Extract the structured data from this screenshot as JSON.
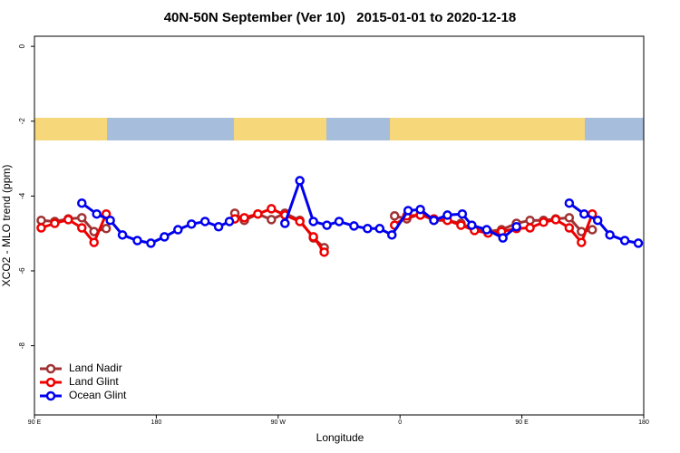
{
  "chart_data": {
    "type": "line",
    "title": "40N-50N September (Ver 10)   2015-01-01 to 2020-12-18",
    "xlabel": "Longitude",
    "ylabel": "XCO2 - MLO trend (ppm)",
    "xlim": [
      90,
      540
    ],
    "xticks": [
      {
        "value": 90,
        "label": "90 E"
      },
      {
        "value": 180,
        "label": "180"
      },
      {
        "value": 270,
        "label": "90 W"
      },
      {
        "value": 360,
        "label": "0"
      },
      {
        "value": 450,
        "label": "90 E"
      },
      {
        "value": 540,
        "label": "180"
      }
    ],
    "ylim": [
      -9.85,
      0.27
    ],
    "yticks": [
      0,
      -2,
      -4,
      -6,
      -8
    ],
    "legend": "bottom-left",
    "series": [
      {
        "name": "Land Nadir",
        "color": "#a03232",
        "x": [
          95,
          105,
          115,
          125,
          134,
          143,
          null,
          238,
          245,
          255,
          265,
          275,
          286,
          296,
          304,
          null,
          356,
          365,
          375,
          385,
          395,
          405,
          415,
          425,
          435,
          446,
          456,
          466,
          475,
          485,
          494,
          502
        ],
        "values": [
          -4.65,
          -4.68,
          -4.61,
          -4.58,
          -4.95,
          -4.87,
          null,
          -4.46,
          -4.65,
          -4.48,
          -4.63,
          -4.46,
          -4.65,
          -5.12,
          -5.38,
          null,
          -4.53,
          -4.61,
          -4.48,
          -4.65,
          -4.65,
          -4.73,
          -4.9,
          -4.95,
          -4.9,
          -4.73,
          -4.65,
          -4.65,
          -4.61,
          -4.58,
          -4.95,
          -4.9
        ]
      },
      {
        "name": "Land Glint",
        "color": "#ee0000",
        "x": [
          95,
          105,
          115,
          125,
          134,
          143,
          null,
          238,
          245,
          255,
          265,
          275,
          286,
          296,
          304,
          null,
          356,
          365,
          375,
          385,
          395,
          405,
          415,
          425,
          435,
          446,
          456,
          466,
          475,
          485,
          494,
          502
        ],
        "values": [
          -4.85,
          -4.73,
          -4.63,
          -4.85,
          -5.24,
          -4.48,
          null,
          -4.61,
          -4.58,
          -4.48,
          -4.34,
          -4.51,
          -4.68,
          -5.09,
          -5.5,
          null,
          -4.78,
          -4.53,
          -4.51,
          -4.61,
          -4.65,
          -4.78,
          -4.92,
          -4.99,
          -4.95,
          -4.87,
          -4.85,
          -4.7,
          -4.63,
          -4.85,
          -5.24,
          -4.48
        ]
      },
      {
        "name": "Ocean Glint",
        "color": "#0000ee",
        "x": [
          125,
          136,
          146,
          155,
          166,
          176,
          186,
          196,
          206,
          216,
          226,
          234,
          null,
          275,
          286,
          296,
          306,
          315,
          326,
          336,
          345,
          354,
          366,
          375,
          385,
          395,
          406,
          413,
          424,
          436,
          446,
          null,
          485,
          496,
          506,
          515,
          526,
          536
        ],
        "values": [
          -4.19,
          -4.48,
          -4.65,
          -5.04,
          -5.19,
          -5.26,
          -5.09,
          -4.9,
          -4.75,
          -4.68,
          -4.82,
          -4.68,
          null,
          -4.73,
          -3.59,
          -4.68,
          -4.78,
          -4.68,
          -4.8,
          -4.87,
          -4.87,
          -5.04,
          -4.39,
          -4.36,
          -4.65,
          -4.51,
          -4.48,
          -4.78,
          -4.9,
          -5.12,
          -4.82,
          null,
          -4.19,
          -4.48,
          -4.65,
          -5.04,
          -5.19,
          -5.26
        ]
      }
    ]
  }
}
